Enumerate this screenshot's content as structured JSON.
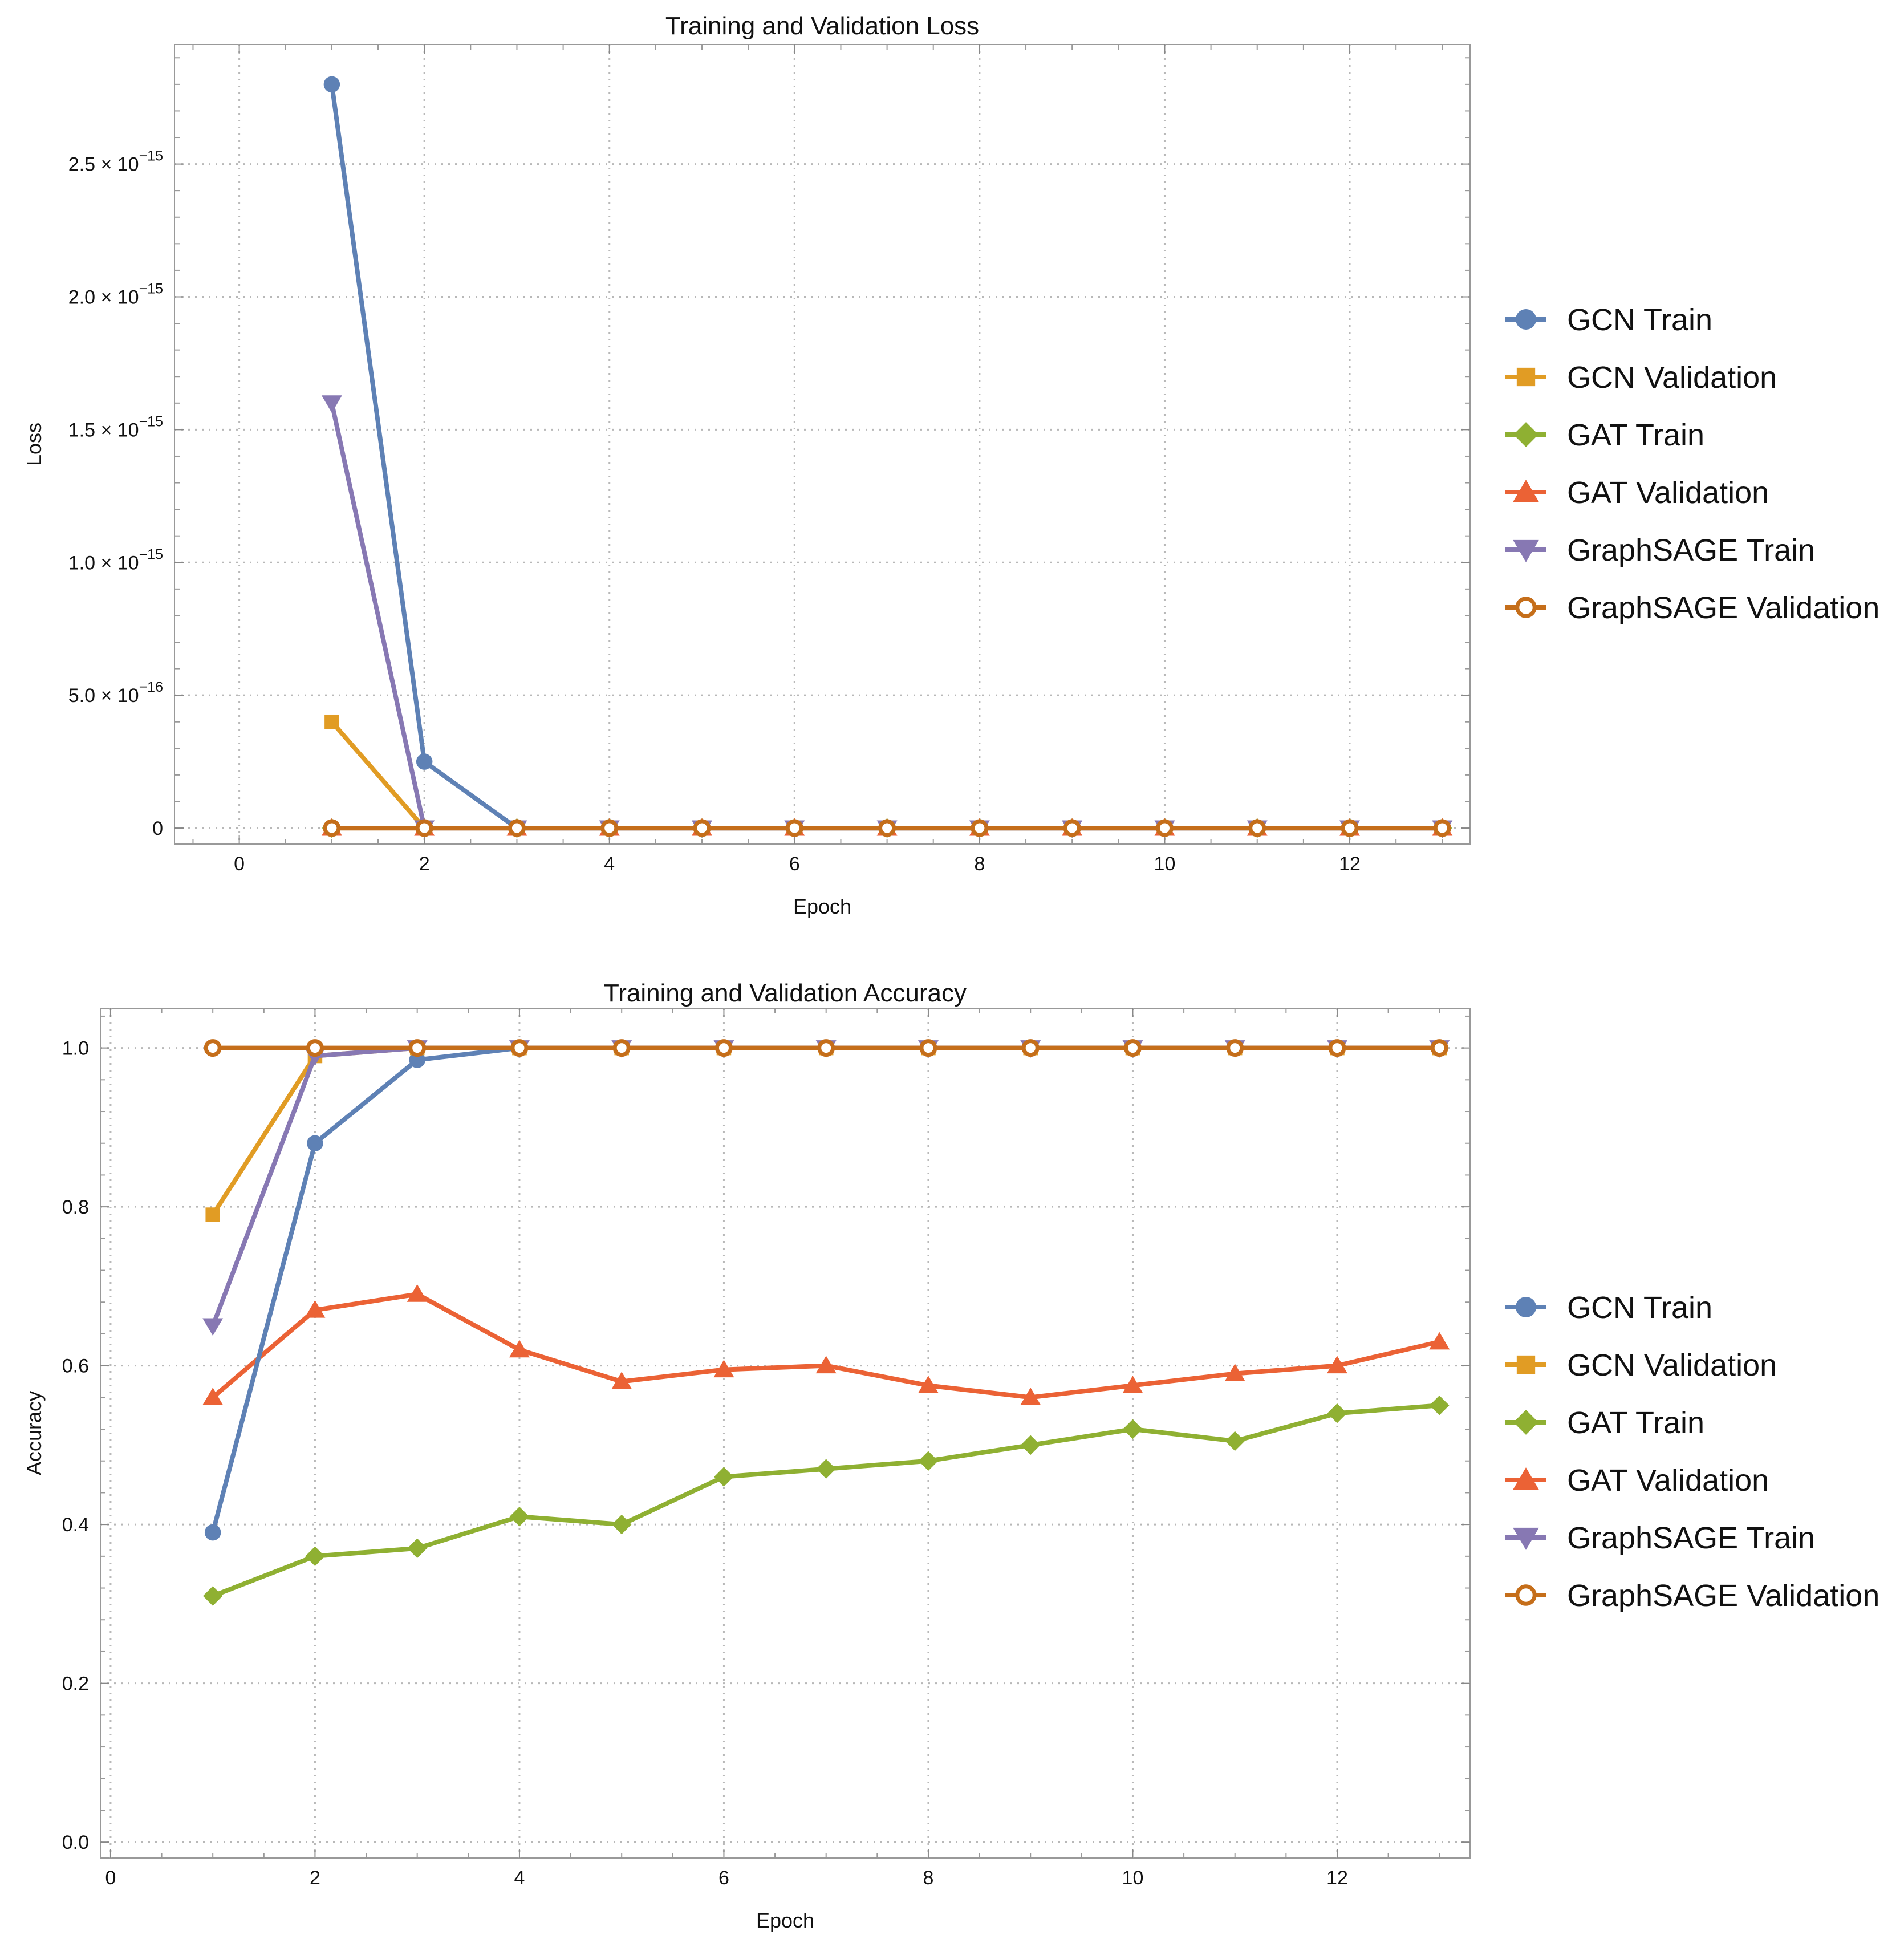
{
  "chart_data": [
    {
      "type": "line",
      "title": "Training and Validation Loss",
      "xlabel": "Epoch",
      "ylabel": "Loss",
      "xlim": [
        -0.7,
        13.3
      ],
      "ylim": [
        -6e-17,
        2.95e-15
      ],
      "xticks": [
        0,
        2,
        4,
        6,
        8,
        10,
        12
      ],
      "yticks": [
        {
          "value": 0,
          "label": "0",
          "mant": "",
          "exp": ""
        },
        {
          "value": 5e-16,
          "label": "5.0 × 10^-16",
          "mant": "5.0 × 10",
          "exp": "−16"
        },
        {
          "value": 1e-15,
          "label": "1.0 × 10^-15",
          "mant": "1.0 × 10",
          "exp": "−15"
        },
        {
          "value": 1.5e-15,
          "label": "1.5 × 10^-15",
          "mant": "1.5 × 10",
          "exp": "−15"
        },
        {
          "value": 2e-15,
          "label": "2.0 × 10^-15",
          "mant": "2.0 × 10",
          "exp": "−15"
        },
        {
          "value": 2.5e-15,
          "label": "2.5 × 10^-15",
          "mant": "2.5 × 10",
          "exp": "−15"
        }
      ],
      "grid": true,
      "legend_position": "right",
      "x": [
        1,
        2,
        3,
        4,
        5,
        6,
        7,
        8,
        9,
        10,
        11,
        12,
        13
      ],
      "series": [
        {
          "name": "GCN Validation",
          "color": "#E19C24",
          "marker": "square",
          "values": [
            4e-16,
            0,
            0,
            0,
            0,
            0,
            0,
            0,
            0,
            0,
            0,
            0,
            0
          ]
        },
        {
          "name": "GAT Train",
          "color": "#8FB032",
          "marker": "diamond",
          "values": [
            0,
            0,
            0,
            0,
            0,
            0,
            0,
            0,
            0,
            0,
            0,
            0,
            0
          ]
        },
        {
          "name": "GAT Validation",
          "color": "#EB6235",
          "marker": "triangle-up",
          "values": [
            0,
            0,
            0,
            0,
            0,
            0,
            0,
            0,
            0,
            0,
            0,
            0,
            0
          ]
        },
        {
          "name": "GraphSAGE Train",
          "color": "#8778B3",
          "marker": "triangle-down",
          "values": [
            1.6e-15,
            0,
            0,
            0,
            0,
            0,
            0,
            0,
            0,
            0,
            0,
            0,
            0
          ]
        },
        {
          "name": "GCN Train",
          "color": "#5E81B5",
          "marker": "circle",
          "values": [
            2.8e-15,
            2.5e-16,
            0,
            0,
            0,
            0,
            0,
            0,
            0,
            0,
            0,
            0,
            0
          ]
        },
        {
          "name": "GraphSAGE Validation",
          "color": "#C56E1A",
          "marker": "open-circle",
          "values": [
            0,
            0,
            0,
            0,
            0,
            0,
            0,
            0,
            0,
            0,
            0,
            0,
            0
          ]
        }
      ],
      "legend": [
        "GCN Train",
        "GCN Validation",
        "GAT Train",
        "GAT Validation",
        "GraphSAGE Train",
        "GraphSAGE Validation"
      ]
    },
    {
      "type": "line",
      "title": "Training and Validation Accuracy",
      "xlabel": "Epoch",
      "ylabel": "Accuracy",
      "xlim": [
        -0.1,
        13.3
      ],
      "ylim": [
        -0.02,
        1.05
      ],
      "xticks": [
        0,
        2,
        4,
        6,
        8,
        10,
        12
      ],
      "yticks": [
        {
          "value": 0,
          "label": "0.0"
        },
        {
          "value": 0.2,
          "label": "0.2"
        },
        {
          "value": 0.4,
          "label": "0.4"
        },
        {
          "value": 0.6,
          "label": "0.6"
        },
        {
          "value": 0.8,
          "label": "0.8"
        },
        {
          "value": 1.0,
          "label": "1.0"
        }
      ],
      "grid": true,
      "legend_position": "right",
      "x": [
        1,
        2,
        3,
        4,
        5,
        6,
        7,
        8,
        9,
        10,
        11,
        12,
        13
      ],
      "series": [
        {
          "name": "GAT Train",
          "color": "#8FB032",
          "marker": "diamond",
          "values": [
            0.31,
            0.36,
            0.37,
            0.41,
            0.4,
            0.46,
            0.47,
            0.48,
            0.5,
            0.52,
            0.505,
            0.54,
            0.55
          ]
        },
        {
          "name": "GAT Validation",
          "color": "#EB6235",
          "marker": "triangle-up",
          "values": [
            0.56,
            0.67,
            0.69,
            0.62,
            0.58,
            0.595,
            0.6,
            0.575,
            0.56,
            0.575,
            0.59,
            0.6,
            0.63
          ]
        },
        {
          "name": "GCN Train",
          "color": "#5E81B5",
          "marker": "circle",
          "values": [
            0.39,
            0.88,
            0.985,
            1.0,
            1.0,
            1.0,
            1.0,
            1.0,
            1.0,
            1.0,
            1.0,
            1.0,
            1.0
          ]
        },
        {
          "name": "GCN Validation",
          "color": "#E19C24",
          "marker": "square",
          "values": [
            0.79,
            0.99,
            1.0,
            1.0,
            1.0,
            1.0,
            1.0,
            1.0,
            1.0,
            1.0,
            1.0,
            1.0,
            1.0
          ]
        },
        {
          "name": "GraphSAGE Train",
          "color": "#8778B3",
          "marker": "triangle-down",
          "values": [
            0.65,
            0.99,
            1.0,
            1.0,
            1.0,
            1.0,
            1.0,
            1.0,
            1.0,
            1.0,
            1.0,
            1.0,
            1.0
          ]
        },
        {
          "name": "GraphSAGE Validation",
          "color": "#C56E1A",
          "marker": "open-circle",
          "values": [
            1.0,
            1.0,
            1.0,
            1.0,
            1.0,
            1.0,
            1.0,
            1.0,
            1.0,
            1.0,
            1.0,
            1.0,
            1.0
          ]
        }
      ],
      "legend": [
        "GCN Train",
        "GCN Validation",
        "GAT Train",
        "GAT Validation",
        "GraphSAGE Train",
        "GraphSAGE Validation"
      ]
    }
  ]
}
